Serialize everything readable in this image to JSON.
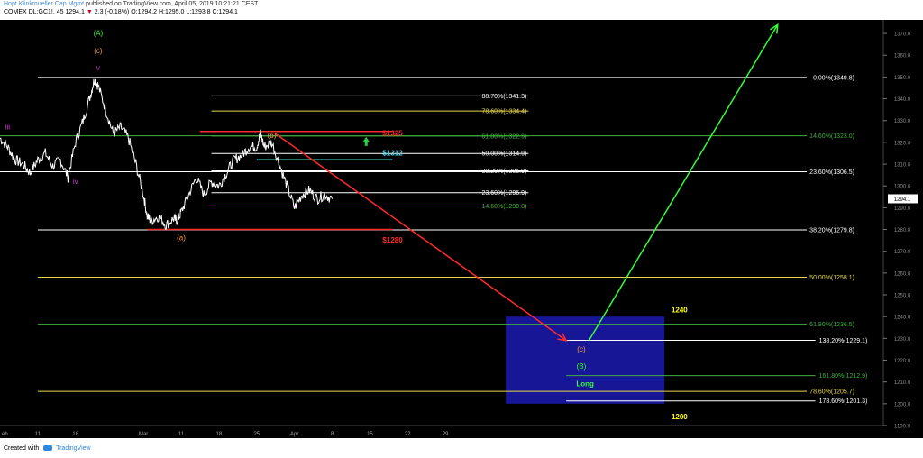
{
  "header": {
    "author": "Hopt Klinkmueller Cap Mgmt",
    "published": "published on TradingView.com, April 05, 2019 10:21:21 CEST",
    "symbol_line_prefix": "COMEX  DL:GC1!, 45  1294.1",
    "change_arrow": "▼",
    "change_text": "2.3 (-0.18%)",
    "ohlc": "O:1294.2  H:1295.0  L:1293.8  C:1294.1"
  },
  "footer": {
    "created_with": "Created with",
    "brand": "TradingView"
  },
  "colors": {
    "background": "#000000",
    "price_line": "#ffffff",
    "white_level": "#ffffff",
    "yellow_level": "#e6d84a",
    "green_level": "#3fae3f",
    "red": "#ff2a2a",
    "cyan": "#4dd9ea",
    "bright_green": "#33ff33",
    "box_fill": "#1a1ab0",
    "orange": "#ff9933",
    "magenta": "#d633d6"
  },
  "chart_data": {
    "type": "line",
    "title": "",
    "xlabel": "",
    "ylabel": "",
    "ylim": [
      1190,
      1375
    ],
    "grid": false,
    "x_ticks": [
      {
        "label": "eb",
        "pos": 0.0
      },
      {
        "label": "11",
        "pos": 5.0
      },
      {
        "label": "18",
        "pos": 10.0
      },
      {
        "label": "Mar",
        "pos": 19.0
      },
      {
        "label": "11",
        "pos": 24.0
      },
      {
        "label": "18",
        "pos": 29.0
      },
      {
        "label": "25",
        "pos": 34.0
      },
      {
        "label": "Apr",
        "pos": 39.0
      },
      {
        "label": "8",
        "pos": 44.0
      },
      {
        "label": "15",
        "pos": 49.0
      },
      {
        "label": "22",
        "pos": 54.0
      },
      {
        "label": "29",
        "pos": 59.0
      }
    ],
    "y_ticks": [
      1190.0,
      1200.0,
      1210.0,
      1220.0,
      1230.0,
      1240.0,
      1250.0,
      1260.0,
      1270.0,
      1280.0,
      1290.0,
      1300.0,
      1310.0,
      1320.0,
      1330.0,
      1340.0,
      1350.0,
      1360.0,
      1370.0
    ],
    "y_tick_labels": [
      "1190.0",
      "1200.0",
      "1210.0",
      "1220.0",
      "1230.0",
      "1240.0",
      "1250.0",
      "1260.0",
      "1270.0",
      "1280.0",
      "1290.0",
      "1300.0",
      "1310.0",
      "1320.0",
      "1330.0",
      "1340.0",
      "1350.0",
      "1360.0",
      "1370.0"
    ],
    "current_price": {
      "value": 1294.1,
      "label": "1294.1"
    },
    "series": [
      {
        "x": [
          0.0,
          1.0,
          2.0,
          3.0,
          4.0,
          5.0,
          6.0,
          7.0,
          8.0,
          9.0,
          10.0,
          11.0,
          12.0,
          12.5,
          13.0,
          14.0,
          15.0,
          16.0,
          17.0,
          18.0,
          19.0,
          19.5,
          20.0,
          21.0,
          22.0,
          23.0,
          23.5,
          24.0,
          25.0,
          26.0,
          27.0,
          28.0,
          29.0,
          30.0,
          31.0,
          32.0,
          33.0,
          34.0,
          34.5,
          35.0,
          36.0,
          37.0,
          38.0,
          39.0,
          40.0,
          41.0,
          42.0,
          43.0,
          44.0
        ],
        "values": [
          1322,
          1318,
          1312,
          1310,
          1306,
          1312,
          1315,
          1309,
          1312,
          1304,
          1320,
          1330,
          1342,
          1349,
          1346,
          1335,
          1324,
          1327,
          1322,
          1310,
          1296,
          1286,
          1284,
          1286,
          1282,
          1285,
          1284,
          1288,
          1296,
          1304,
          1296,
          1302,
          1300,
          1306,
          1312,
          1314,
          1318,
          1318,
          1324,
          1318,
          1320,
          1310,
          1300,
          1290,
          1296,
          1298,
          1294,
          1296,
          1294
        ]
      }
    ],
    "fib_levels": [
      {
        "value": 1349.8,
        "label": "0.00%(1349.8)",
        "color": "white",
        "start": 5.0
      },
      {
        "value": 1341.3,
        "label": "88.70%(1341.3)",
        "color": "white",
        "start": 28.0,
        "end": 70.0,
        "label_side": "inside"
      },
      {
        "value": 1334.4,
        "label": "78.60%(1334.4)",
        "color": "yellow",
        "start": 28.0,
        "end": 70.0,
        "label_side": "inside"
      },
      {
        "value": 1322.9,
        "label": "61.80%(1322.9)",
        "color": "green",
        "start": 28.0,
        "end": 70.0,
        "label_side": "inside"
      },
      {
        "value": 1323.0,
        "label": "14.60%(1323.0)",
        "color": "green",
        "start": 0.0
      },
      {
        "value": 1314.9,
        "label": "50.00%(1314.9)",
        "color": "white",
        "start": 28.0,
        "end": 70.0,
        "label_side": "inside"
      },
      {
        "value": 1306.9,
        "label": "38.20%(1306.9)",
        "color": "white",
        "start": 28.0,
        "end": 70.0,
        "label_side": "inside"
      },
      {
        "value": 1306.5,
        "label": "23.60%(1306.5)",
        "color": "white",
        "start": 0.0
      },
      {
        "value": 1296.9,
        "label": "23.60%(1296.9)",
        "color": "white",
        "start": 28.0,
        "end": 70.0,
        "label_side": "inside"
      },
      {
        "value": 1290.8,
        "label": "14.60%(1290.8)",
        "color": "green",
        "start": 28.0,
        "end": 70.0,
        "label_side": "inside"
      },
      {
        "value": 1279.8,
        "label": "38.20%(1279.8)",
        "color": "white",
        "start": 5.0
      },
      {
        "value": 1258.1,
        "label": "50.00%(1258.1)",
        "color": "yellow",
        "start": 5.0
      },
      {
        "value": 1236.5,
        "label": "61.80%(1236.5)",
        "color": "green",
        "start": 5.0
      },
      {
        "value": 1229.1,
        "label": "138.20%(1229.1)",
        "color": "white",
        "start": 75.0,
        "end": 108.0,
        "label_side": "after"
      },
      {
        "value": 1212.9,
        "label": "161.80%(1212.9)",
        "color": "green",
        "start": 75.0,
        "end": 108.0,
        "label_side": "after"
      },
      {
        "value": 1205.7,
        "label": "78.60%(1205.7)",
        "color": "yellow",
        "start": 5.0
      },
      {
        "value": 1201.3,
        "label": "178.60%(1201.3)",
        "color": "white",
        "start": 75.0,
        "end": 108.0,
        "label_side": "after"
      }
    ],
    "annotations": [
      {
        "text": "(A)",
        "x": 13.0,
        "y": 1369,
        "color": "bright_green"
      },
      {
        "text": "(c)",
        "x": 13.0,
        "y": 1361,
        "color": "orange"
      },
      {
        "text": "v",
        "x": 13.0,
        "y": 1353,
        "color": "magenta"
      },
      {
        "text": "iii",
        "x": 1.0,
        "y": 1326,
        "color": "magenta"
      },
      {
        "text": "iv",
        "x": 10.0,
        "y": 1301,
        "color": "magenta"
      },
      {
        "text": "(b)",
        "x": 36.0,
        "y": 1322,
        "color": "orange"
      },
      {
        "text": "(a)",
        "x": 24.0,
        "y": 1275,
        "color": "orange"
      },
      {
        "text": "$1325",
        "x": 52.0,
        "y": 1323,
        "color": "red"
      },
      {
        "text": "$1312",
        "x": 52.0,
        "y": 1314,
        "color": "cyan"
      },
      {
        "text": "$1280",
        "x": 52.0,
        "y": 1274,
        "color": "red"
      },
      {
        "text": "(c)",
        "x": 77.0,
        "y": 1224,
        "color": "orange"
      },
      {
        "text": "(B)",
        "x": 77.0,
        "y": 1216,
        "color": "bright_green"
      },
      {
        "text": "Long",
        "x": 77.5,
        "y": 1208,
        "color": "bright_green"
      },
      {
        "text": "1240",
        "x": 90.0,
        "y": 1242,
        "color": "yellow"
      },
      {
        "text": "1200",
        "x": 90.0,
        "y": 1193,
        "color": "yellow"
      }
    ],
    "long_box": {
      "x1": 67.0,
      "x2": 88.0,
      "y1": 1240,
      "y2": 1200
    },
    "resistance_1325": {
      "x1": 26.5,
      "x2": 52.0,
      "y": 1325
    },
    "level_1312": {
      "x1": 34.0,
      "x2": 52.0,
      "y": 1312
    },
    "support_1280": {
      "x1": 19.5,
      "x2": 52.0,
      "y": 1280
    },
    "red_arrow": {
      "x1": 36.5,
      "y1": 1324,
      "x2": 75.0,
      "y2": 1229
    },
    "green_arrow": {
      "x1": 78.0,
      "y1": 1229,
      "x2": 103.0,
      "y2": 1374
    },
    "small_up_arrow": {
      "x": 48.5,
      "y": 1320
    }
  }
}
